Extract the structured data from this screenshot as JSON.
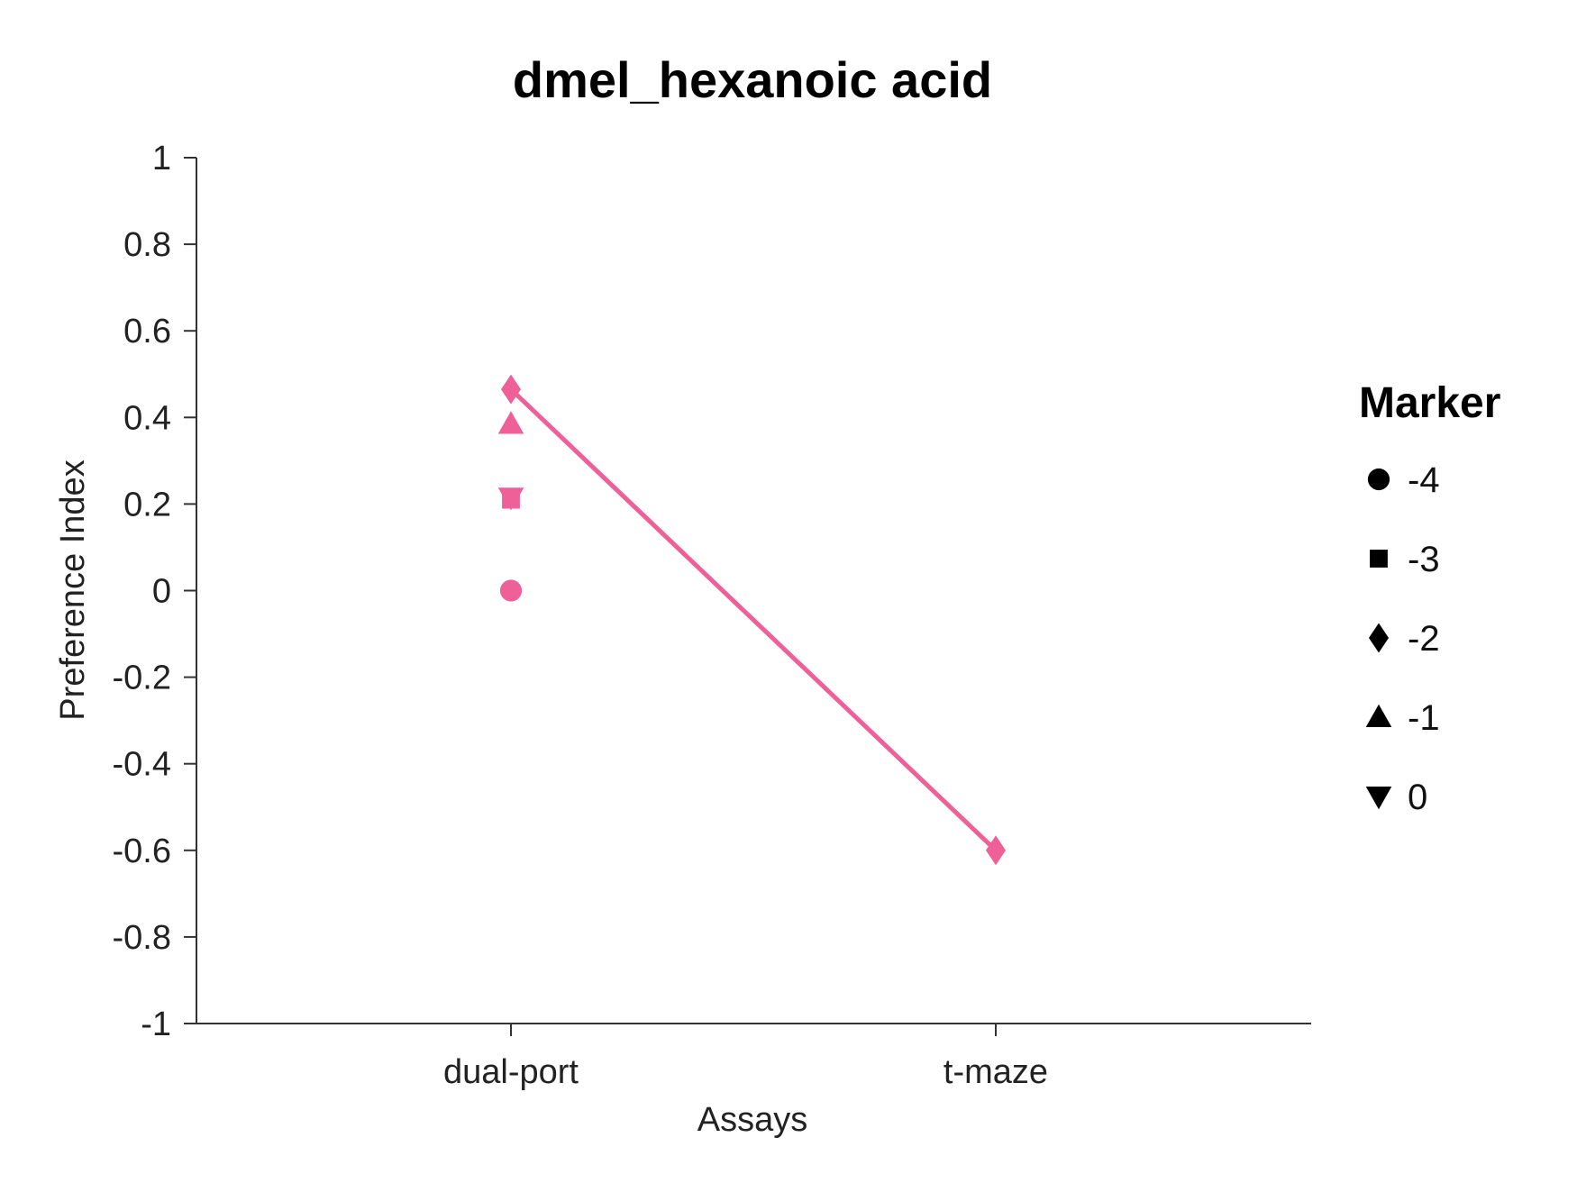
{
  "chart_data": {
    "type": "scatter",
    "title": "dmel_hexanoic acid",
    "xlabel": "Assays",
    "ylabel": "Preference Index",
    "categories": [
      "dual-port",
      "t-maze"
    ],
    "ylim": [
      -1,
      1
    ],
    "yticks": [
      "1",
      "0.8",
      "0.6",
      "0.4",
      "0.2",
      "0",
      "-0.2",
      "-0.4",
      "-0.6",
      "-0.8",
      "-1"
    ],
    "ytick_values": [
      1,
      0.8,
      0.6,
      0.4,
      0.2,
      0,
      -0.2,
      -0.4,
      -0.6,
      -0.8,
      -1
    ],
    "color": "#ef5f98",
    "points": [
      {
        "x": "dual-port",
        "y": 0.0,
        "marker": "-4"
      },
      {
        "x": "dual-port",
        "y": 0.21,
        "marker": "-3"
      },
      {
        "x": "dual-port",
        "y": 0.465,
        "marker": "-2"
      },
      {
        "x": "dual-port",
        "y": 0.385,
        "marker": "-1"
      },
      {
        "x": "dual-port",
        "y": 0.215,
        "marker": "0"
      },
      {
        "x": "t-maze",
        "y": -0.6,
        "marker": "-2"
      }
    ],
    "line": {
      "marker": "-2",
      "points": [
        {
          "x": "dual-port",
          "y": 0.465
        },
        {
          "x": "t-maze",
          "y": -0.6
        }
      ]
    },
    "legend": {
      "title": "Marker",
      "placement": "right",
      "items": [
        {
          "label": "-4",
          "shape": "circle"
        },
        {
          "label": "-3",
          "shape": "square"
        },
        {
          "label": "-2",
          "shape": "diamond"
        },
        {
          "label": "-1",
          "shape": "triangle-up"
        },
        {
          "label": "0",
          "shape": "triangle-down"
        }
      ]
    }
  }
}
